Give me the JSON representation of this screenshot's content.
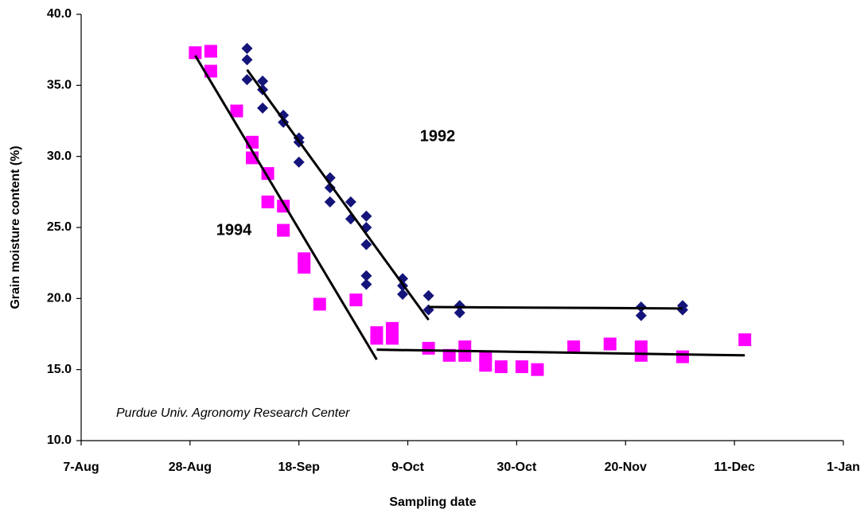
{
  "chart_data": {
    "type": "scatter",
    "x_label": "Sampling date",
    "y_label": "Grain moisture content (%)",
    "annotation": "Purdue Univ. Agronomy Research Center",
    "xlim": [
      219,
      366
    ],
    "xticks": [
      {
        "value": 219,
        "label": "7-Aug"
      },
      {
        "value": 240,
        "label": "28-Aug"
      },
      {
        "value": 261,
        "label": "18-Sep"
      },
      {
        "value": 282,
        "label": "9-Oct"
      },
      {
        "value": 303,
        "label": "30-Oct"
      },
      {
        "value": 324,
        "label": "20-Nov"
      },
      {
        "value": 345,
        "label": "11-Dec"
      },
      {
        "value": 366,
        "label": "1-Jan"
      }
    ],
    "ylim": [
      10,
      40
    ],
    "yticks": [
      {
        "value": 10,
        "label": "10.0"
      },
      {
        "value": 15,
        "label": "15.0"
      },
      {
        "value": 20,
        "label": "20.0"
      },
      {
        "value": 25,
        "label": "25.0"
      },
      {
        "value": 30,
        "label": "30.0"
      },
      {
        "value": 35,
        "label": "35.0"
      },
      {
        "value": 40,
        "label": "40.0"
      }
    ],
    "grid": false,
    "series": [
      {
        "name": "1992",
        "color": "#14147a",
        "marker": "diamond",
        "x": [
          251,
          251,
          251,
          254,
          254,
          254,
          258,
          258,
          261,
          261,
          261,
          267,
          267,
          267,
          271,
          271,
          274,
          274,
          274,
          274,
          274,
          281,
          281,
          281,
          286,
          286,
          292,
          292,
          327,
          327,
          335,
          335
        ],
        "values": [
          37.6,
          36.8,
          35.4,
          35.3,
          34.7,
          33.4,
          32.9,
          32.4,
          31.3,
          31.0,
          29.6,
          28.5,
          27.8,
          26.8,
          26.8,
          25.6,
          25.8,
          25.0,
          23.8,
          21.6,
          21.0,
          21.4,
          20.9,
          20.3,
          20.2,
          19.2,
          19.5,
          19.0,
          19.4,
          18.8,
          19.5,
          19.2
        ],
        "trend": [
          {
            "x": [
              251,
              286
            ],
            "values": [
              36.1,
              18.5
            ]
          },
          {
            "x": [
              286,
              335
            ],
            "values": [
              19.4,
              19.3
            ]
          }
        ]
      },
      {
        "name": "1994",
        "color": "#ff00ff",
        "marker": "square",
        "x": [
          241,
          244,
          244,
          249,
          252,
          252,
          255,
          255,
          258,
          258,
          262,
          262,
          265,
          272,
          276,
          276,
          279,
          279,
          286,
          290,
          293,
          293,
          297,
          297,
          300,
          304,
          307,
          314,
          321,
          327,
          327,
          335,
          347
        ],
        "values": [
          37.3,
          37.4,
          36.0,
          33.2,
          31.0,
          29.9,
          28.8,
          26.8,
          26.5,
          24.8,
          22.8,
          22.2,
          19.6,
          19.9,
          17.6,
          17.2,
          17.9,
          17.2,
          16.5,
          16.0,
          16.6,
          16.0,
          15.9,
          15.3,
          15.2,
          15.2,
          15.0,
          16.6,
          16.8,
          16.6,
          16.0,
          15.9,
          17.1
        ],
        "trend": [
          {
            "x": [
              241,
              276
            ],
            "values": [
              37.1,
              15.7
            ]
          },
          {
            "x": [
              276,
              347
            ],
            "values": [
              16.4,
              16.0
            ]
          }
        ]
      }
    ]
  }
}
